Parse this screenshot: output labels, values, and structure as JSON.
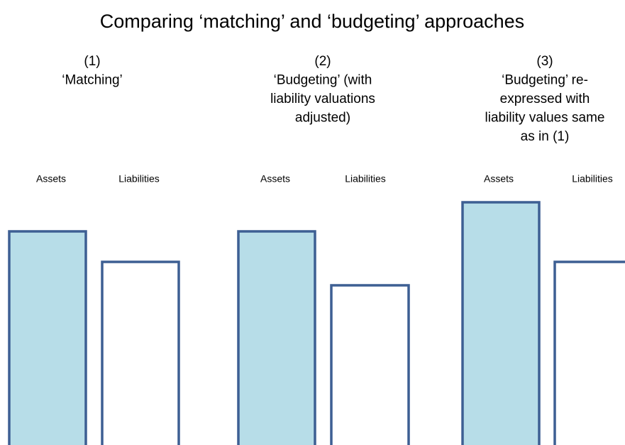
{
  "title": "Comparing ‘matching’ and ‘budgeting’ approaches",
  "panels": [
    {
      "heading": [
        "(1)",
        "‘Matching’"
      ],
      "assets": "Assets",
      "liabilities": "Liabilities"
    },
    {
      "heading": [
        "(2)",
        "‘Budgeting’ (with",
        "liability valuations",
        "adjusted)"
      ],
      "assets": "Assets",
      "liabilities": "Liabilities"
    },
    {
      "heading": [
        "(3)",
        "‘Budgeting’ re-",
        "expressed with",
        "liability values same",
        "as in (1)"
      ],
      "assets": "Assets",
      "liabilities": "Liabilities"
    }
  ]
}
